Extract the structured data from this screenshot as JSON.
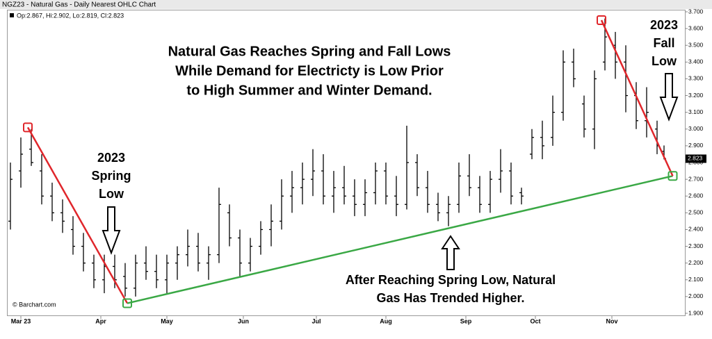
{
  "chart_data": {
    "type": "ohlc",
    "title": "NGZ23 - Natural Gas - Daily Nearest OHLC Chart",
    "legend": "Op:2.867, Hi:2.902, Lo:2.819, Cl:2.823",
    "source": "© Barchart.com",
    "color": "#000000",
    "last_price": 2.823,
    "x": [
      -3,
      0,
      3,
      6,
      9,
      12,
      15,
      18,
      21,
      24,
      27,
      30,
      33,
      36,
      39,
      42,
      45,
      48,
      51,
      54,
      57,
      60,
      63,
      66,
      69,
      72,
      75,
      78,
      81,
      84,
      87,
      90,
      93,
      96,
      99,
      102,
      105,
      108,
      111,
      114,
      117,
      120,
      123,
      126,
      129,
      132,
      135,
      138,
      141,
      144,
      147,
      150,
      153,
      156,
      159,
      162,
      165,
      168,
      171,
      174,
      177,
      180,
      183,
      185
    ],
    "open": [
      2.45,
      2.75,
      2.88,
      2.75,
      2.6,
      2.5,
      2.4,
      2.3,
      2.2,
      2.1,
      2.18,
      2.12,
      2.05,
      2.2,
      2.15,
      2.1,
      2.2,
      2.25,
      2.3,
      2.2,
      2.25,
      2.5,
      2.35,
      2.2,
      2.3,
      2.4,
      2.45,
      2.6,
      2.65,
      2.7,
      2.75,
      2.6,
      2.65,
      2.6,
      2.55,
      2.62,
      2.75,
      2.6,
      2.55,
      2.8,
      2.65,
      2.55,
      2.5,
      2.55,
      2.72,
      2.65,
      2.55,
      2.7,
      2.75,
      2.62,
      2.85,
      2.95,
      2.95,
      3.1,
      3.4,
      3.15,
      3.0,
      3.4,
      3.5,
      3.4,
      3.2,
      3.05,
      3.0,
      2.867
    ],
    "high": [
      2.8,
      2.95,
      3.0,
      2.85,
      2.68,
      2.58,
      2.48,
      2.38,
      2.25,
      2.25,
      2.25,
      2.2,
      2.25,
      2.3,
      2.25,
      2.25,
      2.3,
      2.4,
      2.38,
      2.3,
      2.65,
      2.55,
      2.4,
      2.35,
      2.45,
      2.55,
      2.7,
      2.75,
      2.8,
      2.88,
      2.85,
      2.75,
      2.78,
      2.7,
      2.7,
      2.8,
      2.8,
      2.72,
      3.02,
      2.85,
      2.75,
      2.62,
      2.6,
      2.8,
      2.85,
      2.72,
      2.75,
      2.88,
      2.8,
      2.65,
      3.0,
      3.05,
      3.2,
      3.47,
      3.48,
      3.2,
      3.35,
      3.66,
      3.58,
      3.5,
      3.28,
      3.25,
      3.05,
      2.902
    ],
    "low": [
      2.4,
      2.65,
      2.78,
      2.55,
      2.45,
      2.38,
      2.25,
      2.15,
      2.05,
      2.02,
      2.05,
      2.0,
      2.0,
      2.1,
      2.05,
      2.02,
      2.1,
      2.18,
      2.15,
      2.1,
      2.2,
      2.3,
      2.12,
      2.15,
      2.25,
      2.3,
      2.4,
      2.5,
      2.55,
      2.6,
      2.55,
      2.5,
      2.55,
      2.48,
      2.48,
      2.55,
      2.55,
      2.48,
      2.52,
      2.6,
      2.5,
      2.45,
      2.42,
      2.5,
      2.6,
      2.5,
      2.5,
      2.62,
      2.55,
      2.55,
      2.82,
      2.82,
      2.9,
      3.05,
      3.25,
      2.95,
      2.88,
      3.35,
      3.3,
      3.1,
      3.0,
      2.95,
      2.85,
      2.819
    ],
    "close": [
      2.7,
      2.85,
      2.8,
      2.6,
      2.5,
      2.45,
      2.3,
      2.2,
      2.1,
      2.18,
      2.1,
      2.05,
      2.2,
      2.15,
      2.1,
      2.2,
      2.25,
      2.3,
      2.2,
      2.25,
      2.55,
      2.35,
      2.2,
      2.3,
      2.4,
      2.45,
      2.6,
      2.65,
      2.7,
      2.75,
      2.6,
      2.65,
      2.6,
      2.55,
      2.62,
      2.75,
      2.6,
      2.55,
      2.8,
      2.65,
      2.55,
      2.5,
      2.55,
      2.72,
      2.65,
      2.55,
      2.7,
      2.75,
      2.6,
      2.6,
      2.95,
      2.9,
      3.1,
      3.4,
      3.3,
      3.0,
      3.3,
      3.55,
      3.4,
      3.2,
      3.05,
      3.1,
      2.9,
      2.823
    ],
    "xlim": [
      -4,
      191
    ],
    "xticks": [
      {
        "value": 0,
        "label": "Mar 23"
      },
      {
        "value": 23,
        "label": "Apr"
      },
      {
        "value": 42,
        "label": "May"
      },
      {
        "value": 64,
        "label": "Jun"
      },
      {
        "value": 85,
        "label": "Jul"
      },
      {
        "value": 105,
        "label": "Aug"
      },
      {
        "value": 128,
        "label": "Sep"
      },
      {
        "value": 148,
        "label": "Oct"
      },
      {
        "value": 170,
        "label": "Nov"
      }
    ],
    "ylim": [
      1.9,
      3.7
    ],
    "yticks": [
      {
        "value": 1.9,
        "label": "1.900"
      },
      {
        "value": 2.0,
        "label": "2.000"
      },
      {
        "value": 2.1,
        "label": "2.100"
      },
      {
        "value": 2.2,
        "label": "2.200"
      },
      {
        "value": 2.3,
        "label": "2.300"
      },
      {
        "value": 2.4,
        "label": "2.400"
      },
      {
        "value": 2.5,
        "label": "2.500"
      },
      {
        "value": 2.6,
        "label": "2.600"
      },
      {
        "value": 2.7,
        "label": "2.700"
      },
      {
        "value": 2.8,
        "label": "2.800"
      },
      {
        "value": 2.9,
        "label": "2.900"
      },
      {
        "value": 3.0,
        "label": "3.000"
      },
      {
        "value": 3.1,
        "label": "3.100"
      },
      {
        "value": 3.2,
        "label": "3.200"
      },
      {
        "value": 3.3,
        "label": "3.300"
      },
      {
        "value": 3.4,
        "label": "3.400"
      },
      {
        "value": 3.5,
        "label": "3.500"
      },
      {
        "value": 3.6,
        "label": "3.600"
      },
      {
        "value": 3.7,
        "label": "3.700"
      }
    ],
    "trendlines": [
      {
        "color": "#e0262b",
        "x": [
          2,
          30.6
        ],
        "y": [
          3.01,
          1.96
        ]
      },
      {
        "color": "#3aa845",
        "x": [
          30.6,
          187.5
        ],
        "y": [
          1.96,
          2.72
        ]
      },
      {
        "color": "#e0262b",
        "x": [
          167,
          187.5
        ],
        "y": [
          3.65,
          2.72
        ]
      }
    ],
    "markers": [
      {
        "color": "#e0262b",
        "x": 2,
        "y": 3.01
      },
      {
        "color": "#3aa845",
        "x": 30.6,
        "y": 1.96
      },
      {
        "color": "#e0262b",
        "x": 167,
        "y": 3.65
      },
      {
        "color": "#3aa845",
        "x": 187.5,
        "y": 2.72
      }
    ],
    "annotations": {
      "headline": [
        "Natural Gas Reaches Spring and Fall Lows",
        "While Demand for Electricty is Low Prior",
        "to High Summer and Winter Demand."
      ],
      "spring": [
        "2023",
        "Spring",
        "Low"
      ],
      "fall": [
        "2023",
        "Fall",
        "Low"
      ],
      "trend": [
        "After Reaching Spring Low, Natural",
        "Gas Has Trended Higher."
      ]
    }
  }
}
